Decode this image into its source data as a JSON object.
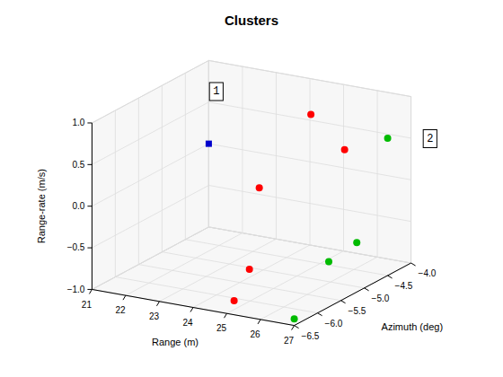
{
  "chart_data": {
    "type": "scatter3d",
    "title": "Clusters",
    "xlabel": "Range (m)",
    "ylabel": "Azimuth (deg)",
    "zlabel": "Range-rate (m/s)",
    "series": [
      {
        "color": "#ff0000",
        "marker": "circle",
        "x": [
          25.0,
          24.3,
          24.7,
          24.8,
          26.0
        ],
        "y": [
          -4.7,
          -5.3,
          -5.8,
          -6.2,
          -4.7
        ],
        "z": [
          0.85,
          0.1,
          -0.7,
          -0.95,
          0.5
        ]
      },
      {
        "color": "#00bb00",
        "marker": "circle",
        "x": [
          27.0,
          26.5,
          26.5,
          27.0
        ],
        "y": [
          -4.5,
          -4.8,
          -5.4,
          -6.5
        ],
        "z": [
          0.65,
          -0.55,
          -0.6,
          -0.92
        ]
      },
      {
        "color": "#0000cc",
        "marker": "square",
        "x": [
          21.0
        ],
        "y": [
          -4.0
        ],
        "z": [
          0.0
        ]
      }
    ],
    "xlim": [
      21,
      27
    ],
    "ylim": [
      -6.5,
      -4.0
    ],
    "zlim": [
      -1.0,
      1.0
    ],
    "xticks": [
      21,
      22,
      23,
      24,
      25,
      26,
      27
    ],
    "yticks": [
      {
        "value": -4.0,
        "label": "−4.0"
      },
      {
        "value": -4.5,
        "label": "−4.5"
      },
      {
        "value": -5.0,
        "label": "−5.0"
      },
      {
        "value": -5.5,
        "label": "−5.5"
      },
      {
        "value": -6.0,
        "label": "−6.0"
      },
      {
        "value": -6.5,
        "label": "−6.5"
      }
    ],
    "zticks": [
      {
        "value": -1.0,
        "label": "−1.0"
      },
      {
        "value": -0.5,
        "label": "−0.5"
      },
      {
        "value": 0.0,
        "label": "0.0"
      },
      0.5,
      {
        "value": 1.0,
        "label": "1.0"
      }
    ],
    "grid": true,
    "annotations": [
      "1",
      "2"
    ]
  }
}
